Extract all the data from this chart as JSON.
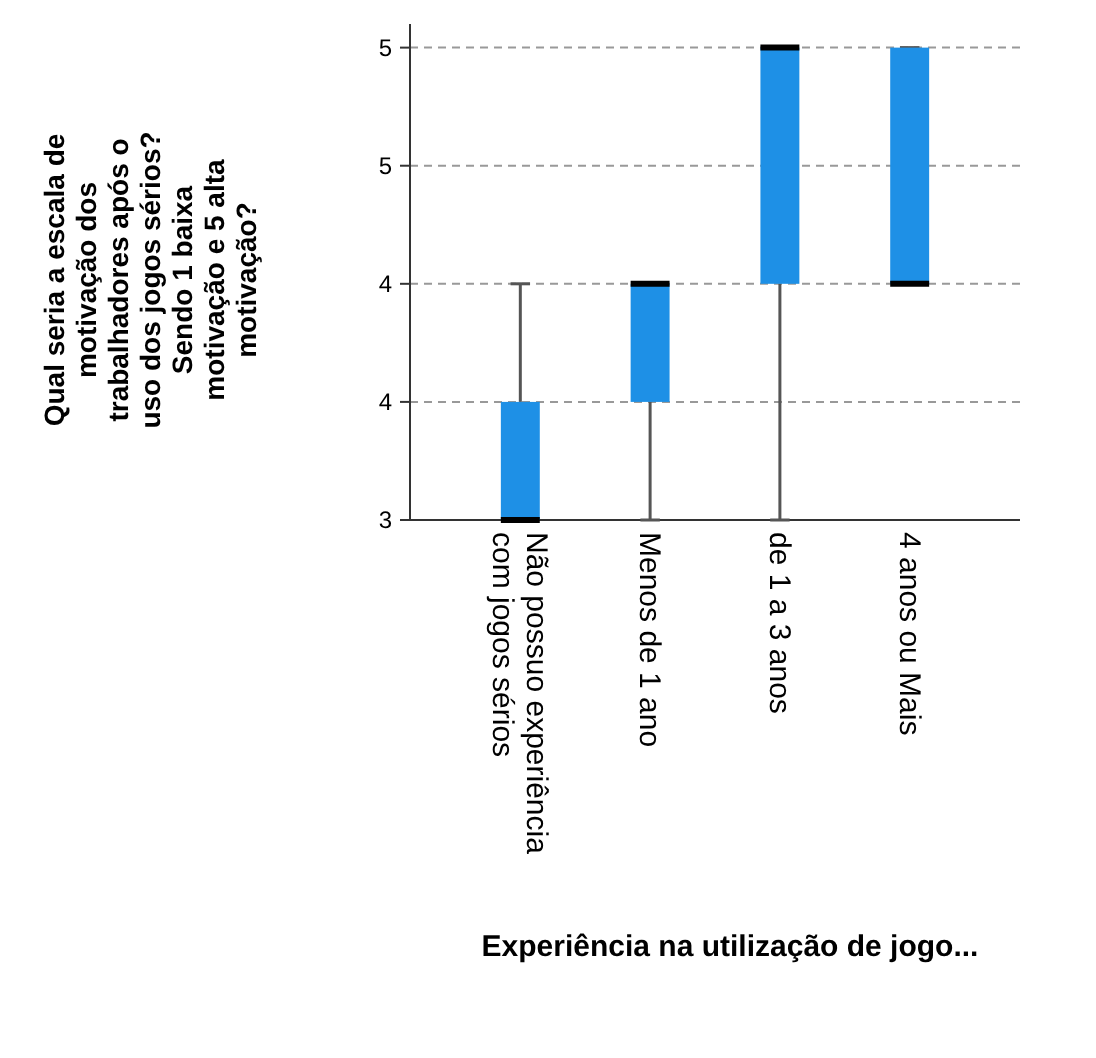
{
  "chart_data": {
    "type": "box",
    "xlabel": "Experiência na utilização de jogo...",
    "ylabel": "Qual seria a escala de\nmotivação dos\ntrabalhadores após o\nuso dos jogos sérios?\nSendo 1 baixa\nmotivação e 5 alta\nmotivação?",
    "categories": [
      "Não possuo experiência\ncom jogos sérios",
      "Menos de 1 ano",
      "de 1 a 3 anos",
      "4 anos ou Mais"
    ],
    "boxes": [
      {
        "low": 3,
        "q1": 3,
        "median": 3,
        "q3": 3.5,
        "high": 4
      },
      {
        "low": 3,
        "q1": 3.5,
        "median": 4,
        "q3": 4,
        "high": 4
      },
      {
        "low": 3,
        "q1": 4,
        "median": 5,
        "q3": 5,
        "high": 5
      },
      {
        "low": 4,
        "q1": 4,
        "median": 4,
        "q3": 5,
        "high": 5
      }
    ],
    "color": "#1e90e6",
    "ylim": [
      3,
      5.1
    ],
    "yticks": [
      3,
      {
        "value": 3.5,
        "label": "4"
      },
      4,
      {
        "value": 4.5,
        "label": "5"
      },
      5
    ],
    "grid": "y"
  }
}
